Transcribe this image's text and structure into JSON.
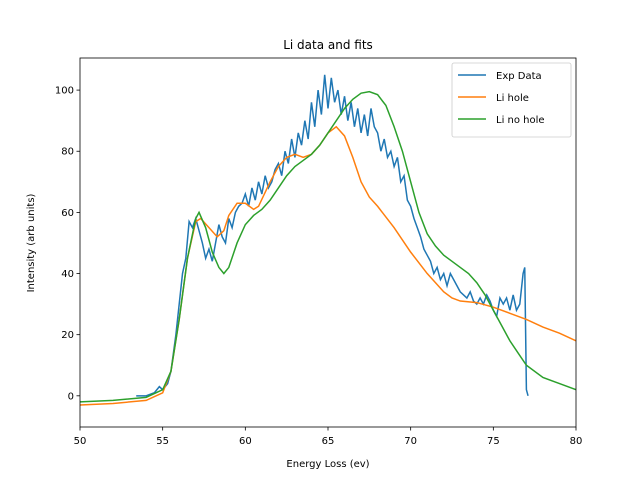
{
  "chart_data": {
    "type": "line",
    "title": "Li data and fits",
    "xlabel": "Energy Loss (ev)",
    "ylabel": "Intensity (arb units)",
    "xlim": [
      50,
      80
    ],
    "ylim": [
      -10.2,
      110.5
    ],
    "xticks": [
      50,
      55,
      60,
      65,
      70,
      75,
      80
    ],
    "yticks": [
      0,
      20,
      40,
      60,
      80,
      100
    ],
    "legend": "upper right",
    "series": [
      {
        "name": "Exp Data",
        "color": "#1f77b4",
        "x": [
          53.4,
          54,
          54.5,
          54.8,
          55,
          55.3,
          55.5,
          55.8,
          56,
          56.2,
          56.4,
          56.6,
          56.8,
          57,
          57.2,
          57.4,
          57.6,
          57.8,
          58,
          58.2,
          58.4,
          58.6,
          58.8,
          59,
          59.2,
          59.4,
          59.6,
          59.8,
          60,
          60.2,
          60.4,
          60.6,
          60.8,
          61,
          61.2,
          61.4,
          61.6,
          61.8,
          62,
          62.2,
          62.4,
          62.6,
          62.8,
          63,
          63.2,
          63.4,
          63.6,
          63.8,
          64,
          64.2,
          64.4,
          64.6,
          64.8,
          65,
          65.2,
          65.4,
          65.6,
          65.8,
          66,
          66.2,
          66.4,
          66.6,
          66.8,
          67,
          67.2,
          67.4,
          67.6,
          67.8,
          68,
          68.2,
          68.4,
          68.6,
          68.8,
          69,
          69.2,
          69.4,
          69.6,
          69.8,
          70,
          70.2,
          70.4,
          70.6,
          70.8,
          71,
          71.2,
          71.4,
          71.6,
          71.8,
          72,
          72.2,
          72.4,
          72.6,
          72.8,
          73,
          73.2,
          73.4,
          73.6,
          73.8,
          74,
          74.2,
          74.4,
          74.6,
          74.8,
          75,
          75.2,
          75.4,
          75.6,
          75.8,
          76,
          76.2,
          76.4,
          76.6,
          76.8,
          76.9,
          77,
          77.1
        ],
        "values": [
          0,
          0,
          1,
          3,
          2,
          4,
          8,
          20,
          30,
          40,
          45,
          57,
          55,
          58,
          54,
          50,
          45,
          48,
          44,
          50,
          56,
          52,
          50,
          58,
          55,
          60,
          62,
          63,
          66,
          62,
          68,
          64,
          70,
          66,
          72,
          68,
          70,
          74,
          76,
          72,
          80,
          76,
          84,
          78,
          86,
          82,
          90,
          84,
          96,
          88,
          100,
          92,
          105,
          94,
          104,
          96,
          100,
          92,
          98,
          90,
          96,
          88,
          94,
          86,
          92,
          85,
          94,
          88,
          86,
          80,
          84,
          78,
          80,
          75,
          78,
          70,
          72,
          64,
          62,
          58,
          55,
          52,
          48,
          46,
          44,
          40,
          42,
          38,
          40,
          36,
          40,
          38,
          36,
          34,
          33,
          32,
          34,
          31,
          30,
          32,
          30,
          33,
          31,
          28,
          26,
          32,
          30,
          32,
          28,
          33,
          28,
          30,
          40,
          42,
          2,
          0
        ]
      },
      {
        "name": "Li hole",
        "color": "#ff7f0e",
        "x": [
          50,
          52,
          54,
          55,
          55.5,
          56,
          56.5,
          57,
          57.3,
          57.8,
          58.3,
          58.7,
          59,
          59.5,
          60,
          60.5,
          60.8,
          61.5,
          62,
          62.5,
          63,
          63.5,
          64,
          64.5,
          65,
          65.5,
          66,
          66.5,
          67,
          67.5,
          68,
          69,
          70,
          71,
          72,
          72.5,
          73,
          74,
          75,
          76,
          77,
          78,
          79,
          80
        ],
        "values": [
          -3,
          -2.5,
          -1.5,
          1,
          8,
          25,
          45,
          57,
          58,
          55,
          52,
          54,
          59,
          63,
          63,
          61,
          62,
          70,
          75,
          78,
          79,
          78,
          79,
          82,
          86,
          88,
          85,
          78,
          70,
          65,
          62,
          55,
          47,
          40,
          34,
          32,
          31,
          30.5,
          29,
          27,
          25,
          22.5,
          20.5,
          18
        ]
      },
      {
        "name": "Li no hole",
        "color": "#2ca02c",
        "x": [
          50,
          52,
          54,
          55,
          55.5,
          56,
          56.5,
          57,
          57.2,
          57.6,
          58,
          58.4,
          58.7,
          59,
          59.5,
          60,
          60.5,
          61,
          61.5,
          62,
          62.5,
          63,
          63.5,
          64,
          64.5,
          65,
          65.5,
          66,
          66.5,
          67,
          67.5,
          68,
          68.5,
          69,
          69.5,
          70,
          70.5,
          71,
          71.5,
          72,
          72.5,
          73,
          73.5,
          74,
          74.5,
          75,
          75.5,
          76,
          76.5,
          77,
          78,
          79,
          80
        ],
        "values": [
          -2,
          -1.5,
          -0.5,
          2,
          8,
          25,
          45,
          58,
          60,
          55,
          47,
          42,
          40,
          42,
          50,
          56,
          59,
          61,
          64,
          68,
          72,
          75,
          77,
          79,
          82,
          86,
          90,
          94,
          97,
          99,
          99.5,
          98.5,
          95,
          88,
          80,
          70,
          60,
          53,
          49,
          46,
          44,
          42,
          40,
          37,
          33,
          28,
          23,
          18,
          14,
          10,
          6,
          4,
          2
        ]
      }
    ]
  }
}
